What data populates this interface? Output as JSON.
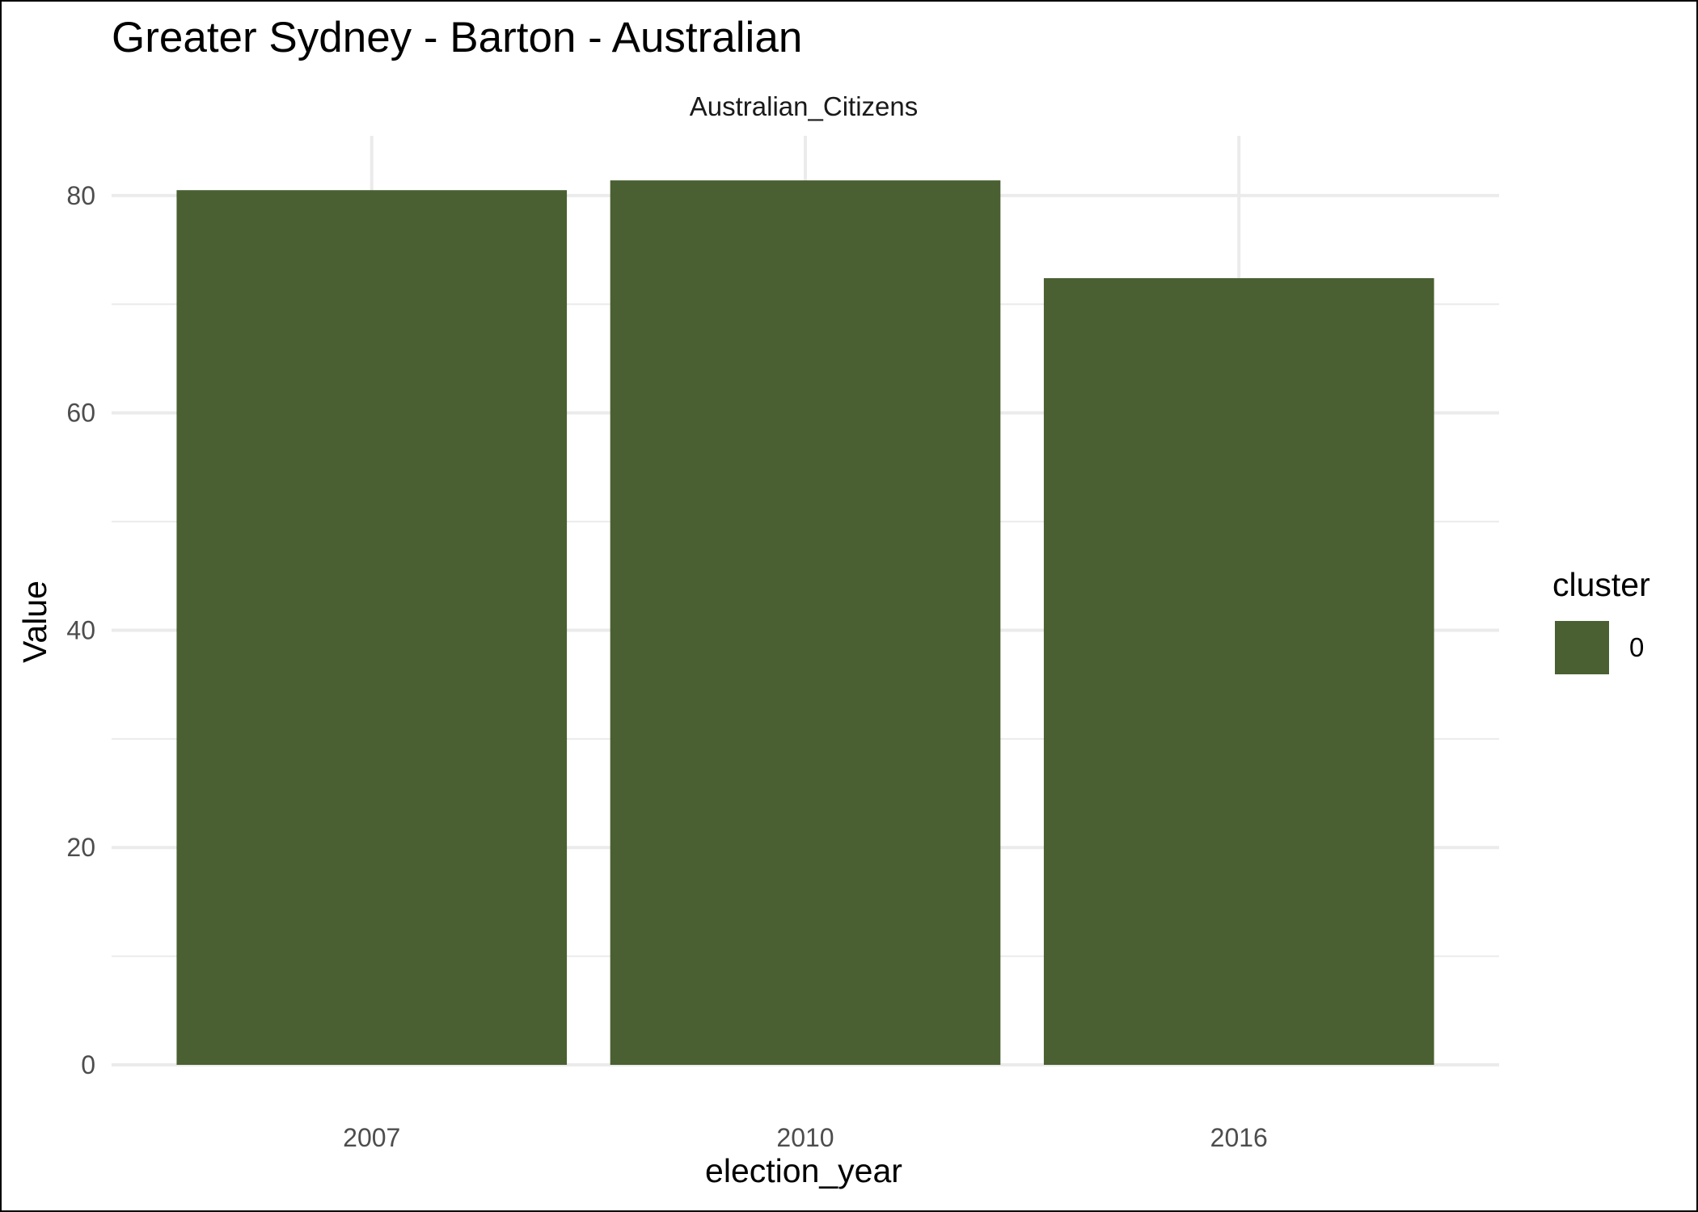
{
  "chart_data": {
    "type": "bar",
    "title": "Greater Sydney - Barton - Australian",
    "facet_label": "Australian_Citizens",
    "xlabel": "election_year",
    "ylabel": "Value",
    "categories": [
      "2007",
      "2010",
      "2016"
    ],
    "series": [
      {
        "name": "0",
        "values": [
          80.5,
          81.4,
          72.4
        ]
      }
    ],
    "ylim": [
      0,
      85.5
    ],
    "yticks": [
      0,
      20,
      40,
      60,
      80
    ],
    "grid": true,
    "legend": {
      "title": "cluster",
      "position": "right",
      "entries": [
        "0"
      ]
    },
    "colors": {
      "bar": "#4a6032",
      "grid": "#ebebeb",
      "background": "#ffffff"
    }
  }
}
